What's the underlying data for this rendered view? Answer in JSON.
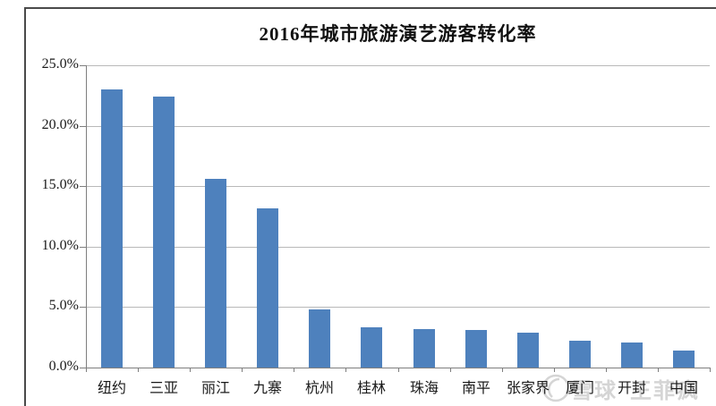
{
  "chart_data": {
    "type": "bar",
    "title": "2016年城市旅游演艺游客转化率",
    "categories": [
      "纽约",
      "三亚",
      "丽江",
      "九寨",
      "杭州",
      "桂林",
      "珠海",
      "南平",
      "张家界",
      "厦门",
      "开封",
      "中国"
    ],
    "values": [
      23.0,
      22.4,
      15.6,
      13.2,
      4.8,
      3.3,
      3.2,
      3.1,
      2.9,
      2.2,
      2.1,
      1.4
    ],
    "unit": "%",
    "xlabel": "",
    "ylabel": "",
    "ylim": [
      0,
      25
    ],
    "ytick_step": 5,
    "ytick_labels": [
      "0.0%",
      "5.0%",
      "10.0%",
      "15.0%",
      "20.0%",
      "25.0%"
    ],
    "grid": true,
    "legend": "none",
    "bar_color": "#4e81bd",
    "gridline_color": "#b9b9b9",
    "axis_color": "#7f7f7f"
  },
  "watermark": {
    "brand": "雪球",
    "username": "王菲疯",
    "logo": "xueqiu-circle-logo",
    "color": "#d5d5d5"
  },
  "frame_color": "#4a4a4a"
}
